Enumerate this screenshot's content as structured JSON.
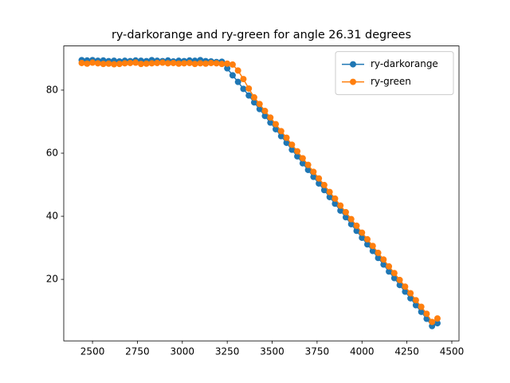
{
  "chart_data": {
    "type": "line",
    "title": "ry-darkorange and ry-green for angle 26.31 degrees",
    "x": [
      2440,
      2470,
      2500,
      2530,
      2560,
      2590,
      2620,
      2650,
      2680,
      2710,
      2740,
      2770,
      2800,
      2830,
      2860,
      2890,
      2920,
      2950,
      2980,
      3010,
      3040,
      3070,
      3100,
      3130,
      3160,
      3190,
      3220,
      3250,
      3280,
      3310,
      3340,
      3370,
      3400,
      3430,
      3460,
      3490,
      3520,
      3550,
      3580,
      3610,
      3640,
      3670,
      3700,
      3730,
      3760,
      3790,
      3820,
      3850,
      3880,
      3910,
      3940,
      3970,
      4000,
      4030,
      4060,
      4090,
      4120,
      4150,
      4180,
      4210,
      4240,
      4270,
      4300,
      4330,
      4360,
      4390,
      4420
    ],
    "series": [
      {
        "name": "ry-darkorange",
        "color": "#1f77b4",
        "values": [
          89.5,
          89.4,
          89.5,
          89.3,
          89.4,
          89.2,
          89.3,
          89.1,
          89.3,
          89.2,
          89.4,
          89.3,
          89.2,
          89.5,
          89.3,
          89.2,
          89.4,
          89.1,
          89.3,
          89.2,
          89.4,
          89.3,
          89.5,
          89.2,
          89.1,
          88.9,
          89.0,
          86.9,
          84.7,
          82.6,
          80.4,
          78.3,
          76.1,
          74.0,
          71.8,
          69.7,
          67.6,
          65.4,
          63.3,
          61.1,
          59.0,
          56.8,
          54.7,
          52.5,
          50.4,
          48.3,
          46.1,
          44.0,
          41.8,
          39.7,
          37.5,
          35.4,
          33.2,
          31.1,
          29.0,
          26.8,
          24.7,
          22.5,
          20.4,
          18.2,
          16.1,
          14.0,
          11.8,
          9.7,
          7.5,
          5.2,
          6.1
        ]
      },
      {
        "name": "ry-green",
        "color": "#ff7f0e",
        "values": [
          88.6,
          88.4,
          88.7,
          88.5,
          88.3,
          88.4,
          88.2,
          88.3,
          88.5,
          88.6,
          88.7,
          88.3,
          88.4,
          88.5,
          88.6,
          88.7,
          88.5,
          88.6,
          88.4,
          88.5,
          88.6,
          88.3,
          88.5,
          88.4,
          88.6,
          88.5,
          88.3,
          88.4,
          88.1,
          86.2,
          83.5,
          80.5,
          77.7,
          75.6,
          73.4,
          71.3,
          69.2,
          67.0,
          64.9,
          62.7,
          60.6,
          58.4,
          56.3,
          54.1,
          52.0,
          49.9,
          47.7,
          45.6,
          43.4,
          41.3,
          39.1,
          37.0,
          34.8,
          32.7,
          30.6,
          28.4,
          26.3,
          24.1,
          22.0,
          19.8,
          17.7,
          15.6,
          13.4,
          11.3,
          9.1,
          6.5,
          7.6
        ]
      }
    ],
    "xlim": [
      2340,
      4540
    ],
    "ylim": [
      0.5,
      94
    ],
    "xticks": [
      2500,
      2750,
      3000,
      3250,
      3500,
      3750,
      4000,
      4250,
      4500
    ],
    "yticks": [
      20,
      40,
      60,
      80
    ],
    "legend": "upper right",
    "grid": false
  }
}
